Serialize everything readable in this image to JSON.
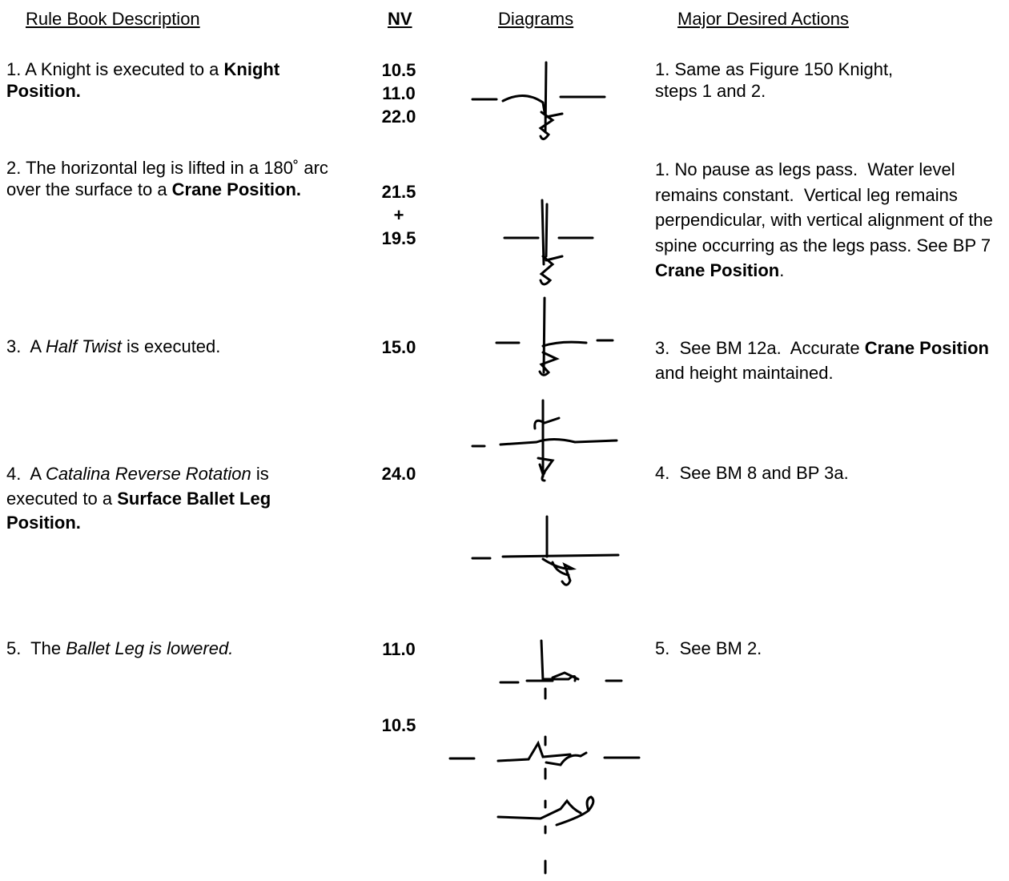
{
  "header": {
    "description": "Rule Book Description",
    "nv": "NV",
    "diagrams": "Diagrams",
    "actions": "Major Desired Actions"
  },
  "rows": [
    {
      "description": [
        "1. A Knight is executed to a ",
        "Knight Position."
      ],
      "nv": [
        "10.5",
        "11.0",
        "22.0"
      ],
      "actions": [
        "1. Same as Figure 150 Knight, steps 1 and 2."
      ]
    },
    {
      "description": [
        "2. The horizontal leg is lifted in a 180˚ arc over the surface to a ",
        "Crane Position."
      ],
      "nv": [
        "21.5",
        "+",
        "19.5"
      ],
      "actions": [
        "1. No pause as legs pass.  Water level remains constant.  Vertical leg remains perpendicular, with vertical alignment of the spine occurring as the legs pass. See BP 7 ",
        "Crane Position",
        "."
      ]
    },
    {
      "description": [
        "3.  A ",
        "Half Twist",
        " is executed."
      ],
      "nv": [
        "15.0"
      ],
      "actions": [
        "3.  See BM 12a.  Accurate ",
        "Crane Position",
        " and height maintained."
      ]
    },
    {
      "description": [
        "4.  A ",
        "Catalina Reverse Rotation",
        " is executed to a ",
        "Surface Ballet Leg Position."
      ],
      "nv": [
        "24.0"
      ],
      "actions": [
        "4.  See BM 8 and BP 3a."
      ]
    },
    {
      "description": [
        "5.  The ",
        "Ballet Leg is lowered."
      ],
      "nv": [
        "11.0",
        "10.5"
      ],
      "actions": [
        "5.  See BM 2."
      ]
    }
  ]
}
